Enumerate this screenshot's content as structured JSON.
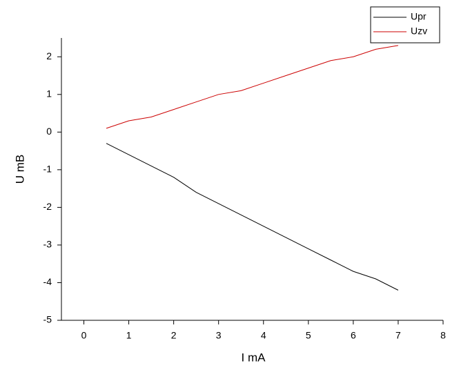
{
  "chart_data": {
    "type": "line",
    "x_label": "I  mA",
    "y_label": "U  mB",
    "x": [
      0.5,
      1,
      1.5,
      2,
      2.5,
      3,
      3.5,
      4,
      4.5,
      5,
      5.5,
      6,
      6.5,
      7
    ],
    "series": [
      {
        "name": "Upr",
        "color": "#000000",
        "values": [
          -0.3,
          -0.6,
          -0.9,
          -1.2,
          -1.6,
          -1.9,
          -2.2,
          -2.5,
          -2.8,
          -3.1,
          -3.4,
          -3.7,
          -3.9,
          -4.2
        ]
      },
      {
        "name": "Uzv",
        "color": "#cc0000",
        "values": [
          0.1,
          0.3,
          0.4,
          0.6,
          0.8,
          1.0,
          1.1,
          1.3,
          1.5,
          1.7,
          1.9,
          2.0,
          2.2,
          2.3
        ]
      }
    ],
    "xlim": [
      -0.5,
      8
    ],
    "ylim": [
      -5,
      2.5
    ],
    "xticks": [
      0,
      1,
      2,
      3,
      4,
      5,
      6,
      7,
      8
    ],
    "yticks": [
      -5,
      -4,
      -3,
      -2,
      -1,
      0,
      1,
      2
    ],
    "grid": false,
    "legend": "top-right"
  }
}
